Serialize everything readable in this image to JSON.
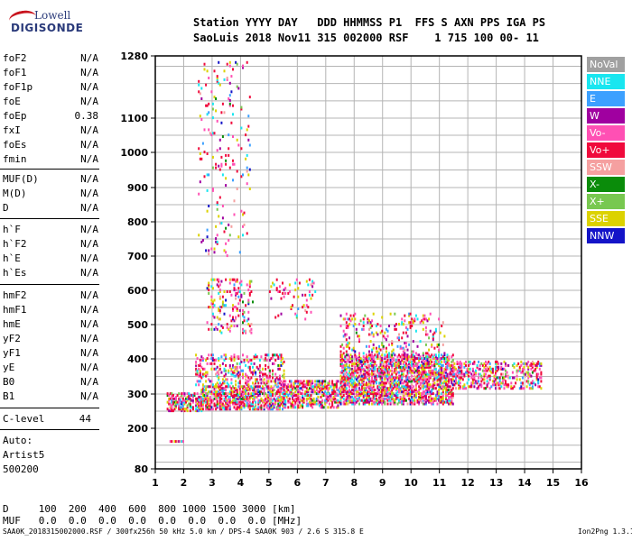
{
  "logo": {
    "line1": "Lowell",
    "line2": "DIGISONDE"
  },
  "header": {
    "row1": "Station YYYY DAY   DDD HHMMSS P1  FFS S AXN PPS IGA PS",
    "row2": "SaoLuis 2018 Nov11 315 002000 RSF    1 715 100 00- 11"
  },
  "params": [
    {
      "label": "foF2",
      "value": "N/A"
    },
    {
      "label": "foF1",
      "value": "N/A"
    },
    {
      "label": "foF1p",
      "value": "N/A"
    },
    {
      "label": "foE",
      "value": "N/A"
    },
    {
      "label": "foEp",
      "value": "0.38"
    },
    {
      "label": "fxI",
      "value": "N/A"
    },
    {
      "label": "foEs",
      "value": "N/A"
    },
    {
      "label": "fmin",
      "value": "N/A"
    },
    {
      "label": "MUF(D)",
      "value": "N/A"
    },
    {
      "label": "M(D)",
      "value": "N/A"
    },
    {
      "label": "D",
      "value": "N/A"
    },
    {
      "label": "h`F",
      "value": "N/A"
    },
    {
      "label": "h`F2",
      "value": "N/A"
    },
    {
      "label": "h`E",
      "value": "N/A"
    },
    {
      "label": "h`Es",
      "value": "N/A"
    },
    {
      "label": "hmF2",
      "value": "N/A"
    },
    {
      "label": "hmF1",
      "value": "N/A"
    },
    {
      "label": "hmE",
      "value": "N/A"
    },
    {
      "label": "yF2",
      "value": "N/A"
    },
    {
      "label": "yF1",
      "value": "N/A"
    },
    {
      "label": "yE",
      "value": "N/A"
    },
    {
      "label": "B0",
      "value": "N/A"
    },
    {
      "label": "B1",
      "value": "N/A"
    },
    {
      "label": "C-level",
      "value": "44"
    }
  ],
  "auto": {
    "line1": "Auto:",
    "line2": "Artist5",
    "line3": "500200"
  },
  "legend": [
    {
      "label": "NoVal",
      "color": "#a0a0a0"
    },
    {
      "label": "NNE",
      "color": "#19e6f0"
    },
    {
      "label": "E",
      "color": "#3ca0ff"
    },
    {
      "label": "W",
      "color": "#a000a0"
    },
    {
      "label": "Vo-",
      "color": "#ff50b4"
    },
    {
      "label": "Vo+",
      "color": "#f00a3c"
    },
    {
      "label": "SSW",
      "color": "#f5a0a0"
    },
    {
      "label": "X-",
      "color": "#0a8c0a"
    },
    {
      "label": "X+",
      "color": "#78c850"
    },
    {
      "label": "SSE",
      "color": "#dcd200"
    },
    {
      "label": "NNW",
      "color": "#1414c8"
    }
  ],
  "footer": {
    "row1": "D     100  200  400  600  800 1000 1500 3000 [km]",
    "row2": "MUF   0.0  0.0  0.0  0.0  0.0  0.0  0.0  0.0 [MHz]",
    "info": "SAA0K_2018315002000.RSF / 300fx256h 50 kHz 5.0 km / DPS-4 SAA0K 903 / 2.6 S 315.8 E",
    "version": "Ion2Png 1.3.17"
  },
  "chart_data": {
    "type": "scatter",
    "title": "",
    "xlabel": "",
    "ylabel": "",
    "xlim": [
      1,
      16
    ],
    "ylim": [
      80,
      1280
    ],
    "yscale": "reciprocal-like",
    "x_ticks": [
      "1",
      "2",
      "3",
      "4",
      "5",
      "6",
      "7",
      "8",
      "9",
      "10",
      "11",
      "12",
      "13",
      "14",
      "15",
      "16"
    ],
    "y_ticks": [
      {
        "value": 80,
        "label": "80"
      },
      {
        "value": 200,
        "label": "200"
      },
      {
        "value": 300,
        "label": "300"
      },
      {
        "value": 400,
        "label": "400"
      },
      {
        "value": 500,
        "label": "500"
      },
      {
        "value": 600,
        "label": "600"
      },
      {
        "value": 700,
        "label": "700"
      },
      {
        "value": 800,
        "label": "800"
      },
      {
        "value": 900,
        "label": "900"
      },
      {
        "value": 1000,
        "label": "1000"
      },
      {
        "value": 1100,
        "label": "1100"
      },
      {
        "value": 1280,
        "label": "1280"
      }
    ],
    "grid": true,
    "legend_position": "right",
    "regions": [
      {
        "xmin": 1.4,
        "xmax": 2.6,
        "hmin": 255,
        "hmax": 310,
        "density": 0.55
      },
      {
        "xmin": 2.6,
        "xmax": 5.5,
        "hmin": 260,
        "hmax": 330,
        "density": 0.6
      },
      {
        "xmin": 5.5,
        "xmax": 7.5,
        "hmin": 265,
        "hmax": 345,
        "density": 0.55
      },
      {
        "xmin": 7.5,
        "xmax": 11.5,
        "hmin": 275,
        "hmax": 420,
        "density": 0.6
      },
      {
        "xmin": 11.5,
        "xmax": 14.6,
        "hmin": 320,
        "hmax": 400,
        "density": 0.35
      },
      {
        "xmin": 2.4,
        "xmax": 5.5,
        "hmin": 330,
        "hmax": 420,
        "density": 0.25
      },
      {
        "xmin": 2.8,
        "xmax": 4.4,
        "hmin": 480,
        "hmax": 640,
        "density": 0.15
      },
      {
        "xmin": 5.0,
        "xmax": 6.6,
        "hmin": 520,
        "hmax": 640,
        "density": 0.08
      },
      {
        "xmin": 1.5,
        "xmax": 2.0,
        "hmin": 165,
        "hmax": 170,
        "density": 0.6
      },
      {
        "xmin": 2.5,
        "xmax": 4.3,
        "hmin": 700,
        "hmax": 1280,
        "density": 0.04
      },
      {
        "xmin": 7.5,
        "xmax": 11.2,
        "hmin": 420,
        "hmax": 540,
        "density": 0.12
      }
    ]
  }
}
